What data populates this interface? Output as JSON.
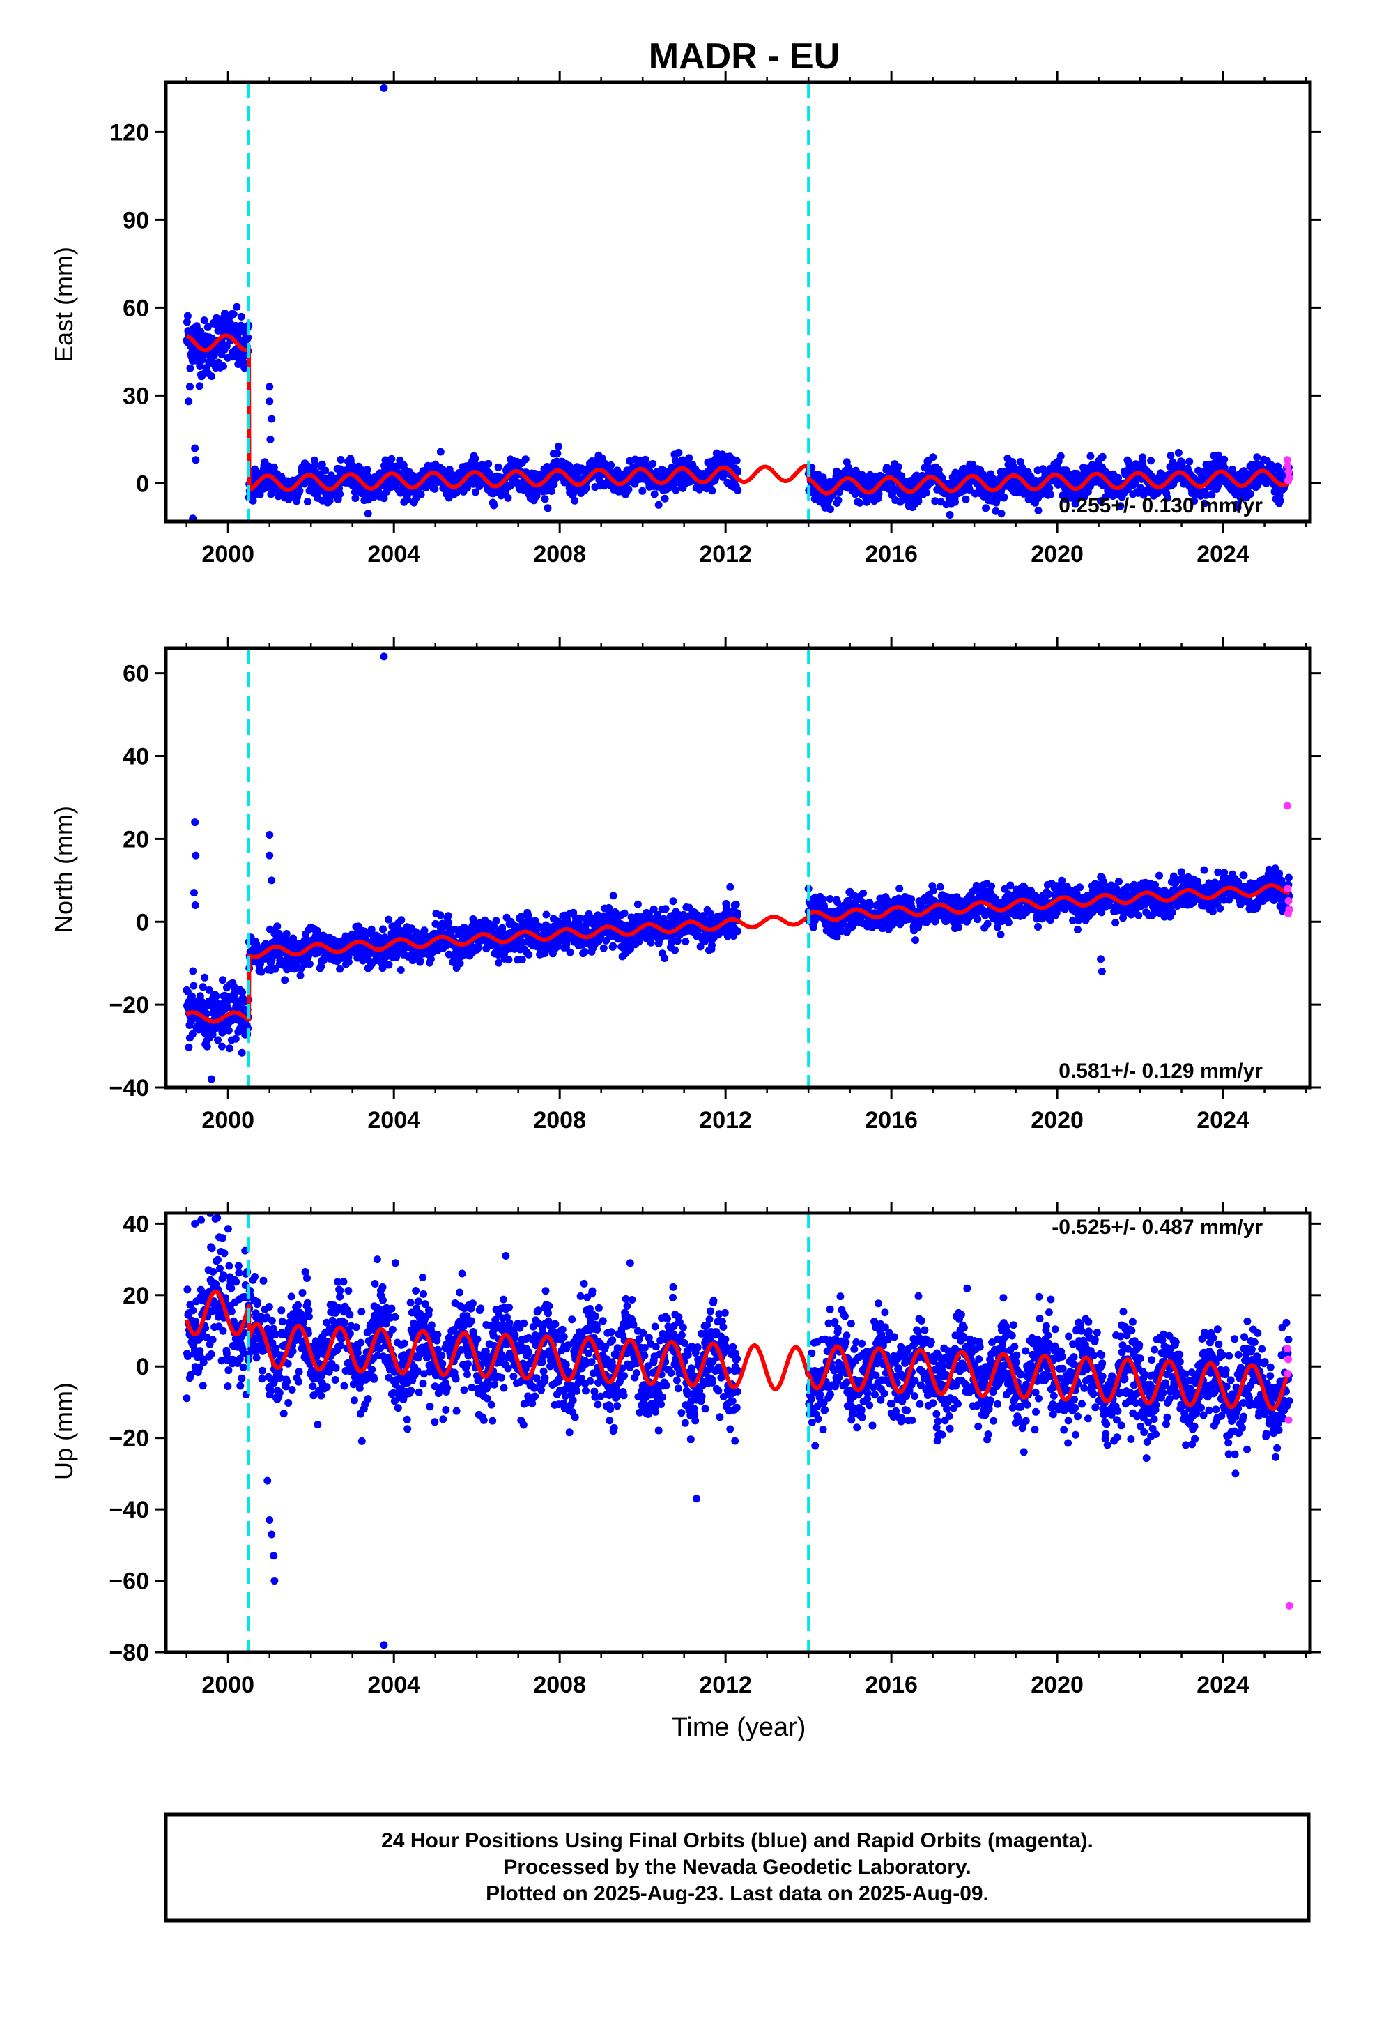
{
  "title": "MADR - EU",
  "colors": {
    "final_orbits": "#0000ff",
    "rapid_orbits": "#ff33ff",
    "model": "#ff0000",
    "steps": "#00e5ee",
    "frame": "#000000",
    "background": "#ffffff"
  },
  "xlabel": "Time (year)",
  "footer": {
    "line1": "24 Hour Positions Using Final Orbits (blue) and Rapid Orbits (magenta).",
    "line2": "Processed by the Nevada Geodetic Laboratory.",
    "line3": "Plotted on 2025-Aug-23. Last data on 2025-Aug-09."
  },
  "chart_data": [
    {
      "type": "scatter",
      "component": "east",
      "ylabel": "East (mm)",
      "rate_text": "0.255+/- 0.130 mm/yr",
      "rate_position": "bottom-right",
      "xlim": [
        1998.5,
        2026.1
      ],
      "ylim": [
        -13,
        137
      ],
      "xticks": [
        2000,
        2004,
        2008,
        2012,
        2016,
        2020,
        2024
      ],
      "yticks": [
        0,
        30,
        60,
        90,
        120
      ],
      "grid": false,
      "step_epochs": [
        2000.5,
        2014.0
      ],
      "data_gap": [
        2012.3,
        2014.0
      ],
      "segments": [
        {
          "start": 1999.0,
          "end": 2000.5,
          "offset": 48,
          "rate": 0,
          "scatter": 5
        },
        {
          "start": 2000.5,
          "end": 2014.0,
          "offset": 0,
          "rate": 0.255,
          "scatter": 2.6
        },
        {
          "start": 2014.0,
          "end": 2025.6,
          "offset": -1,
          "rate": 0.255,
          "scatter": 2.6
        }
      ],
      "seasonal": {
        "amplitude": 2.5,
        "phase": 0.3
      },
      "outliers": [
        {
          "x": 2003.76,
          "y": 135
        },
        {
          "x": 1999.15,
          "y": -12
        },
        {
          "x": 1999.2,
          "y": 12
        },
        {
          "x": 1999.22,
          "y": 8
        },
        {
          "x": 1999.05,
          "y": 28
        },
        {
          "x": 1999.08,
          "y": 33
        },
        {
          "x": 2001.0,
          "y": 33
        },
        {
          "x": 2001.0,
          "y": 28
        },
        {
          "x": 2001.05,
          "y": 22
        },
        {
          "x": 2001.02,
          "y": 15
        },
        {
          "x": 2021.05,
          "y": -6
        }
      ],
      "rapid_points": [
        {
          "x": 2025.55,
          "y": 8
        },
        {
          "x": 2025.56,
          "y": 6
        },
        {
          "x": 2025.58,
          "y": 4
        },
        {
          "x": 2025.6,
          "y": 2
        },
        {
          "x": 2025.57,
          "y": 1
        }
      ]
    },
    {
      "type": "scatter",
      "component": "north",
      "ylabel": "North (mm)",
      "rate_text": "0.581+/- 0.129 mm/yr",
      "rate_position": "bottom-right",
      "xlim": [
        1998.5,
        2026.1
      ],
      "ylim": [
        -40,
        66
      ],
      "xticks": [
        2000,
        2004,
        2008,
        2012,
        2016,
        2020,
        2024
      ],
      "yticks": [
        -40,
        -20,
        0,
        20,
        40,
        60
      ],
      "grid": false,
      "step_epochs": [
        2000.5,
        2014.0
      ],
      "data_gap": [
        2012.3,
        2014.0
      ],
      "segments": [
        {
          "start": 1999.0,
          "end": 2000.5,
          "offset": -23,
          "rate": 0,
          "scatter": 3.5
        },
        {
          "start": 2000.5,
          "end": 2014.0,
          "offset": -7.5,
          "rate": 0.6,
          "scatter": 2.2
        },
        {
          "start": 2014.0,
          "end": 2025.6,
          "offset": 1.2,
          "rate": 0.581,
          "scatter": 2.0
        }
      ],
      "seasonal": {
        "amplitude": 1.1,
        "phase": 0.1
      },
      "outliers": [
        {
          "x": 2003.76,
          "y": 64
        },
        {
          "x": 1999.2,
          "y": 24
        },
        {
          "x": 1999.22,
          "y": 16
        },
        {
          "x": 1999.18,
          "y": 7
        },
        {
          "x": 1999.21,
          "y": 4
        },
        {
          "x": 1999.6,
          "y": -38
        },
        {
          "x": 2001.0,
          "y": 21
        },
        {
          "x": 2001.0,
          "y": 16
        },
        {
          "x": 2001.05,
          "y": 10
        },
        {
          "x": 2021.05,
          "y": -9
        },
        {
          "x": 2021.08,
          "y": -12
        },
        {
          "x": 2014.0,
          "y": 8
        }
      ],
      "rapid_points": [
        {
          "x": 2025.55,
          "y": 28
        },
        {
          "x": 2025.56,
          "y": 8
        },
        {
          "x": 2025.58,
          "y": 5
        },
        {
          "x": 2025.6,
          "y": 3
        },
        {
          "x": 2025.57,
          "y": 2
        }
      ]
    },
    {
      "type": "scatter",
      "component": "up",
      "ylabel": "Up (mm)",
      "rate_text": "-0.525+/- 0.487 mm/yr",
      "rate_position": "top-right",
      "xlim": [
        1998.5,
        2026.1
      ],
      "ylim": [
        -80,
        43
      ],
      "xticks": [
        2000,
        2004,
        2008,
        2012,
        2016,
        2020,
        2024
      ],
      "yticks": [
        -80,
        -60,
        -40,
        -20,
        0,
        20,
        40
      ],
      "grid": false,
      "step_epochs": [
        2000.5,
        2014.0
      ],
      "data_gap": [
        2012.3,
        2014.0
      ],
      "segments": [
        {
          "start": 1999.0,
          "end": 2000.5,
          "offset": 15,
          "rate": 0,
          "scatter": 8
        },
        {
          "start": 2000.5,
          "end": 2014.0,
          "offset": 6,
          "rate": -0.5,
          "scatter": 6.5
        },
        {
          "start": 2014.0,
          "end": 2025.6,
          "offset": 0,
          "rate": -0.525,
          "scatter": 6.5
        }
      ],
      "seasonal": {
        "amplitude": 6,
        "phase": 0.55
      },
      "outliers": [
        {
          "x": 2003.76,
          "y": -78
        },
        {
          "x": 1999.35,
          "y": 41
        },
        {
          "x": 1999.2,
          "y": 40
        },
        {
          "x": 2001.0,
          "y": -43
        },
        {
          "x": 2001.05,
          "y": -47
        },
        {
          "x": 2001.1,
          "y": -53
        },
        {
          "x": 2001.12,
          "y": -60
        },
        {
          "x": 2000.95,
          "y": -32
        },
        {
          "x": 2011.3,
          "y": -37
        },
        {
          "x": 2024.3,
          "y": -30
        },
        {
          "x": 2003.6,
          "y": 30
        },
        {
          "x": 2006.7,
          "y": 31
        },
        {
          "x": 2009.7,
          "y": 29
        }
      ],
      "rapid_points": [
        {
          "x": 2025.55,
          "y": 5
        },
        {
          "x": 2025.56,
          "y": -2
        },
        {
          "x": 2025.58,
          "y": -15
        },
        {
          "x": 2025.6,
          "y": -67
        },
        {
          "x": 2025.57,
          "y": 2
        }
      ]
    }
  ]
}
